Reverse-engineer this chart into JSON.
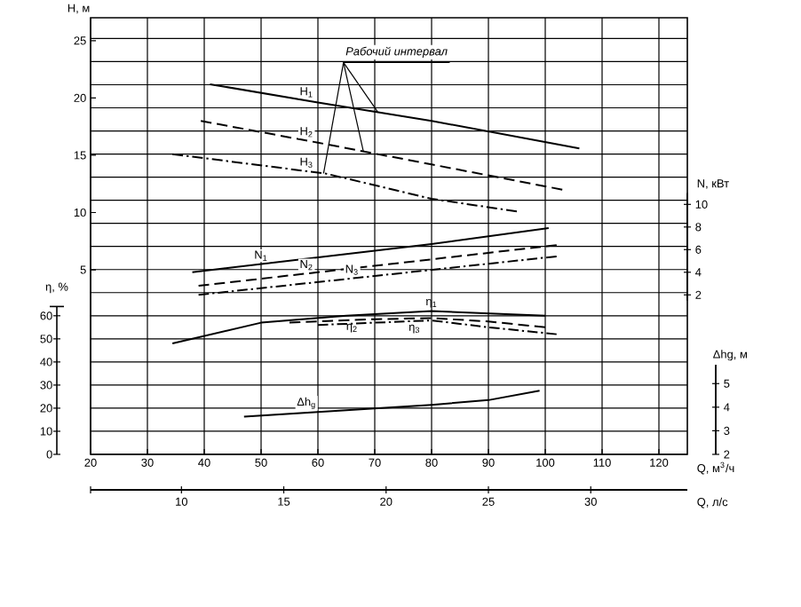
{
  "chart_data": [
    {
      "type": "line",
      "annotations": [
        {
          "text": "Рабочий интервал",
          "x": 70.5,
          "y": 18.8
        }
      ],
      "xlabel": "Q, м$^{3}$/ч",
      "x2label": "Q, л/с",
      "ylabel": "H, м",
      "y2label": "N, кВт",
      "y3label": "η, %",
      "xlim": [
        20,
        125
      ],
      "xticks": [
        20,
        30,
        40,
        50,
        60,
        70,
        80,
        90,
        100,
        110,
        120
      ],
      "x2lim": [
        5.56,
        34.72
      ],
      "x2ticks": [
        10,
        15,
        20,
        25,
        30
      ],
      "ylim": [
        -11.1,
        27
      ],
      "yticks": [
        5,
        10,
        15,
        20,
        25
      ],
      "y2lim": [
        -12.1,
        26.5
      ],
      "y2ticks": [
        2,
        4,
        6,
        8,
        10
      ],
      "y3lim": [
        0,
        189
      ],
      "y3ticks": [
        0,
        10,
        20,
        30,
        40,
        50,
        60,
        {
          "value": 70,
          "label": null
        },
        {
          "value": 80,
          "label": null
        },
        {
          "value": 90,
          "label": null
        },
        {
          "value": 100,
          "label": null
        },
        {
          "value": 110,
          "label": null
        },
        {
          "value": 120,
          "label": null
        },
        {
          "value": 130,
          "label": null
        },
        {
          "value": 140,
          "label": null
        },
        {
          "value": 150,
          "label": null
        },
        {
          "value": 160,
          "label": null
        },
        {
          "value": 170,
          "label": null
        },
        {
          "value": 180,
          "label": null
        }
      ],
      "grid": true,
      "series": [
        {
          "name": "H$_{1}$",
          "color": "#000000",
          "axis": "y",
          "line_style": "solid",
          "x": [
            41,
            60,
            80,
            106
          ],
          "values": [
            21.2,
            19.6,
            18.0,
            15.6
          ]
        },
        {
          "name": "H$_{2}$",
          "color": "#000000",
          "axis": "y",
          "line_style": "dashed",
          "x": [
            39.4,
            60,
            80,
            103
          ],
          "values": [
            18.0,
            16.1,
            14.2,
            12.0
          ]
        },
        {
          "name": "H$_{3}$",
          "color": "#000000",
          "axis": "y",
          "line_style": "dashdot",
          "x": [
            34.4,
            61.4,
            80,
            95
          ],
          "values": [
            15.1,
            13.4,
            11.2,
            10.1
          ]
        },
        {
          "name": "N$_{1}$",
          "color": "#000000",
          "axis": "y2",
          "line_style": "solid",
          "x": [
            37.9,
            80,
            100.6
          ],
          "values": [
            4.0,
            6.5,
            7.9
          ]
        },
        {
          "name": "N$_{2}$",
          "color": "#000000",
          "axis": "y2",
          "line_style": "dashed",
          "x": [
            39,
            102
          ],
          "values": [
            2.8,
            6.4
          ]
        },
        {
          "name": "N$_{3}$",
          "color": "#000000",
          "axis": "y2",
          "line_style": "dashdot",
          "x": [
            39,
            102
          ],
          "values": [
            2.0,
            5.4
          ]
        },
        {
          "name": "η$_{1}$",
          "color": "#000000",
          "axis": "y3",
          "line_style": "solid",
          "x": [
            34.4,
            50,
            65,
            80,
            90,
            100
          ],
          "values": [
            48,
            57,
            60,
            62,
            61,
            60
          ]
        },
        {
          "name": "η$_{2}$",
          "color": "#000000",
          "axis": "y3",
          "line_style": "dashed",
          "x": [
            55,
            70,
            80,
            90,
            100
          ],
          "values": [
            57,
            58.5,
            59,
            57.5,
            55
          ]
        },
        {
          "name": "η$_{3}$",
          "color": "#000000",
          "axis": "y3",
          "line_style": "dashdot",
          "x": [
            60,
            70,
            80,
            90,
            102
          ],
          "values": [
            56,
            57,
            58,
            55,
            52
          ]
        }
      ]
    },
    {
      "type": "line",
      "ylabel": "Δhg, м",
      "xlim": [
        20,
        125
      ],
      "ylim": [
        2,
        5.8
      ],
      "yticks": [
        2,
        3,
        4,
        5
      ],
      "tick_labels": "y",
      "series": [
        {
          "name": "Δh$_{g}$",
          "color": "#000000",
          "line_style": "solid",
          "x": [
            47,
            60,
            80,
            90,
            99
          ],
          "values": [
            3.6,
            3.8,
            4.1,
            4.3,
            4.7
          ]
        }
      ]
    }
  ]
}
